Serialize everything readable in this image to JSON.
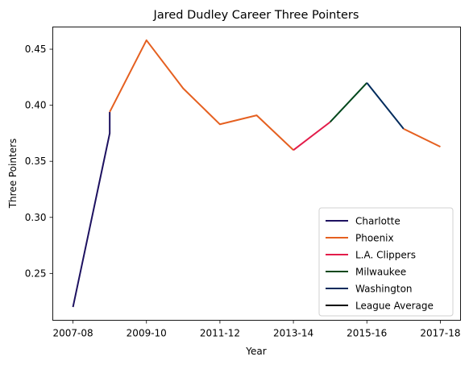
{
  "chart_data": {
    "type": "line",
    "title": "Jared Dudley Career Three Pointers",
    "xlabel": "Year",
    "ylabel": "Three Pointers",
    "x_ticks": [
      "2007-08",
      "2009-10",
      "2011-12",
      "2013-14",
      "2015-16",
      "2017-18"
    ],
    "x_tick_index": [
      0,
      2,
      4,
      6,
      8,
      10
    ],
    "y_ticks": [
      0.25,
      0.3,
      0.35,
      0.4,
      0.45
    ],
    "xlim": [
      -0.55,
      10.55
    ],
    "ylim": [
      0.2082,
      0.4698
    ],
    "grid": false,
    "legend_position": "lower-right",
    "series": [
      {
        "name": "Charlotte",
        "color": "#1d1160",
        "x": [
          0,
          1,
          1
        ],
        "y": [
          0.22,
          0.375,
          0.394
        ]
      },
      {
        "name": "Phoenix",
        "color": "#e56020",
        "x": [
          1,
          2,
          3,
          4,
          5,
          6
        ],
        "y": [
          0.394,
          0.458,
          0.415,
          0.383,
          0.391,
          0.36
        ]
      },
      {
        "name": "L.A. Clippers",
        "color": "#e31c4a",
        "x": [
          6,
          7
        ],
        "y": [
          0.36,
          0.385
        ]
      },
      {
        "name": "Milwaukee",
        "color": "#00471b",
        "x": [
          7,
          8
        ],
        "y": [
          0.385,
          0.42
        ]
      },
      {
        "name": "Washington",
        "color": "#002b5c",
        "x": [
          8,
          9
        ],
        "y": [
          0.42,
          0.379
        ]
      },
      {
        "name": "Phoenix",
        "color": "#e56020",
        "x": [
          9,
          10
        ],
        "y": [
          0.379,
          0.363
        ],
        "in_legend": false
      },
      {
        "name": "League Average",
        "color": "#000000",
        "x": [],
        "y": []
      }
    ]
  }
}
